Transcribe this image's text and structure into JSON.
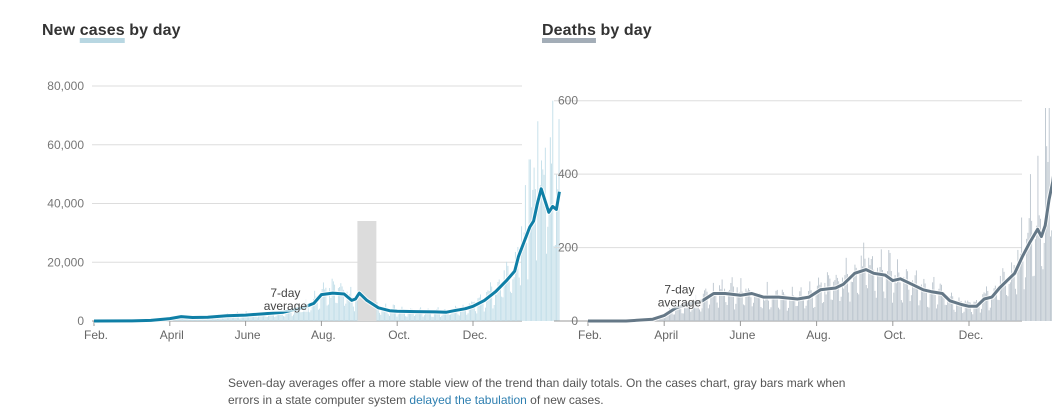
{
  "cases": {
    "title_pre": "New ",
    "title_hl": "cases",
    "title_post": " by day",
    "avg_label": [
      "7-day",
      "average"
    ],
    "colors": {
      "bar": "#c0dde8",
      "line": "#0f7fa6",
      "bar_error": "#dcdcdc"
    }
  },
  "deaths": {
    "title_pre": "",
    "title_hl": "Deaths",
    "title_post": " by day",
    "avg_label": [
      "7-day",
      "average"
    ],
    "colors": {
      "bar": "#b9c3cc",
      "line": "#657887"
    }
  },
  "note": {
    "text_1": "Seven-day averages offer a more stable view of the trend than daily totals. On the cases chart, gray bars mark when errors in a state computer system ",
    "link": "delayed the tabulation",
    "text_2": " of new cases."
  },
  "chart_data": [
    {
      "type": "bar",
      "title": "New cases by day",
      "x_tick_labels": [
        "Feb.",
        "April",
        "June",
        "Aug.",
        "Oct.",
        "Dec."
      ],
      "y_ticks": [
        0,
        20000,
        40000,
        60000,
        80000
      ],
      "y_tick_labels": [
        "0",
        "20,000",
        "40,000",
        "60,000",
        "80,000"
      ],
      "ylim": [
        0,
        80000
      ],
      "x_range_months": [
        1,
        13.3
      ],
      "grid": true,
      "series": [
        {
          "name": "7-day average",
          "type": "line",
          "points": [
            [
              1,
              0
            ],
            [
              2,
              50
            ],
            [
              2.5,
              200
            ],
            [
              3,
              800
            ],
            [
              3.3,
              1500
            ],
            [
              3.6,
              1200
            ],
            [
              4,
              1300
            ],
            [
              4.5,
              1800
            ],
            [
              5,
              2000
            ],
            [
              5.5,
              2500
            ],
            [
              6,
              3000
            ],
            [
              6.5,
              4500
            ],
            [
              6.8,
              6000
            ],
            [
              7,
              9000
            ],
            [
              7.3,
              9500
            ],
            [
              7.6,
              9200
            ],
            [
              7.8,
              7000
            ],
            [
              7.9,
              7500
            ],
            [
              8,
              9500
            ],
            [
              8.2,
              7000
            ],
            [
              8.5,
              4500
            ],
            [
              8.8,
              3500
            ],
            [
              9,
              3300
            ],
            [
              9.5,
              3200
            ],
            [
              10,
              3100
            ],
            [
              10.3,
              3000
            ],
            [
              10.5,
              3500
            ],
            [
              10.8,
              4200
            ],
            [
              11,
              5000
            ],
            [
              11.3,
              7000
            ],
            [
              11.6,
              10000
            ],
            [
              11.9,
              14000
            ],
            [
              12.1,
              17000
            ],
            [
              12.2,
              22000
            ],
            [
              12.5,
              32000
            ],
            [
              12.6,
              34000
            ],
            [
              12.7,
              40000
            ],
            [
              12.8,
              45000
            ],
            [
              12.9,
              41000
            ],
            [
              13.0,
              37000
            ],
            [
              13.1,
              39000
            ],
            [
              13.2,
              38000
            ],
            [
              13.28,
              44000
            ]
          ]
        },
        {
          "name": "daily",
          "type": "bar",
          "points": [
            [
              12.5,
              55000
            ],
            [
              12.7,
              68000
            ],
            [
              12.9,
              59000
            ],
            [
              13.1,
              75000
            ],
            [
              13.2,
              50000
            ]
          ]
        }
      ]
    },
    {
      "type": "bar",
      "title": "Deaths by day",
      "x_tick_labels": [
        "Feb.",
        "April",
        "June",
        "Aug.",
        "Oct.",
        "Dec."
      ],
      "y_ticks": [
        0,
        200,
        400,
        600
      ],
      "y_tick_labels": [
        "0",
        "200",
        "400",
        "600"
      ],
      "ylim": [
        0,
        640
      ],
      "x_range_months": [
        1,
        13.3
      ],
      "grid": true,
      "series": [
        {
          "name": "7-day average",
          "type": "line",
          "points": [
            [
              1,
              0
            ],
            [
              2,
              0
            ],
            [
              2.7,
              5
            ],
            [
              3,
              15
            ],
            [
              3.3,
              35
            ],
            [
              3.6,
              45
            ],
            [
              4,
              55
            ],
            [
              4.3,
              75
            ],
            [
              4.6,
              75
            ],
            [
              5,
              70
            ],
            [
              5.3,
              75
            ],
            [
              5.6,
              65
            ],
            [
              6,
              65
            ],
            [
              6.5,
              60
            ],
            [
              6.8,
              65
            ],
            [
              7.1,
              85
            ],
            [
              7.5,
              90
            ],
            [
              7.7,
              100
            ],
            [
              8,
              130
            ],
            [
              8.3,
              140
            ],
            [
              8.5,
              130
            ],
            [
              8.8,
              125
            ],
            [
              9,
              110
            ],
            [
              9.2,
              115
            ],
            [
              9.5,
              100
            ],
            [
              9.8,
              85
            ],
            [
              10,
              80
            ],
            [
              10.3,
              75
            ],
            [
              10.5,
              55
            ],
            [
              10.8,
              45
            ],
            [
              11,
              40
            ],
            [
              11.2,
              40
            ],
            [
              11.4,
              60
            ],
            [
              11.6,
              65
            ],
            [
              11.8,
              90
            ],
            [
              12,
              110
            ],
            [
              12.2,
              130
            ],
            [
              12.4,
              175
            ],
            [
              12.6,
              215
            ],
            [
              12.8,
              250
            ],
            [
              12.9,
              230
            ],
            [
              13.0,
              260
            ],
            [
              13.1,
              330
            ],
            [
              13.2,
              380
            ],
            [
              13.28,
              450
            ]
          ]
        },
        {
          "name": "daily",
          "type": "bar",
          "points": [
            [
              12.6,
              400
            ],
            [
              12.8,
              450
            ],
            [
              13.0,
              580
            ],
            [
              13.1,
              580
            ],
            [
              13.2,
              660
            ]
          ]
        }
      ]
    }
  ]
}
